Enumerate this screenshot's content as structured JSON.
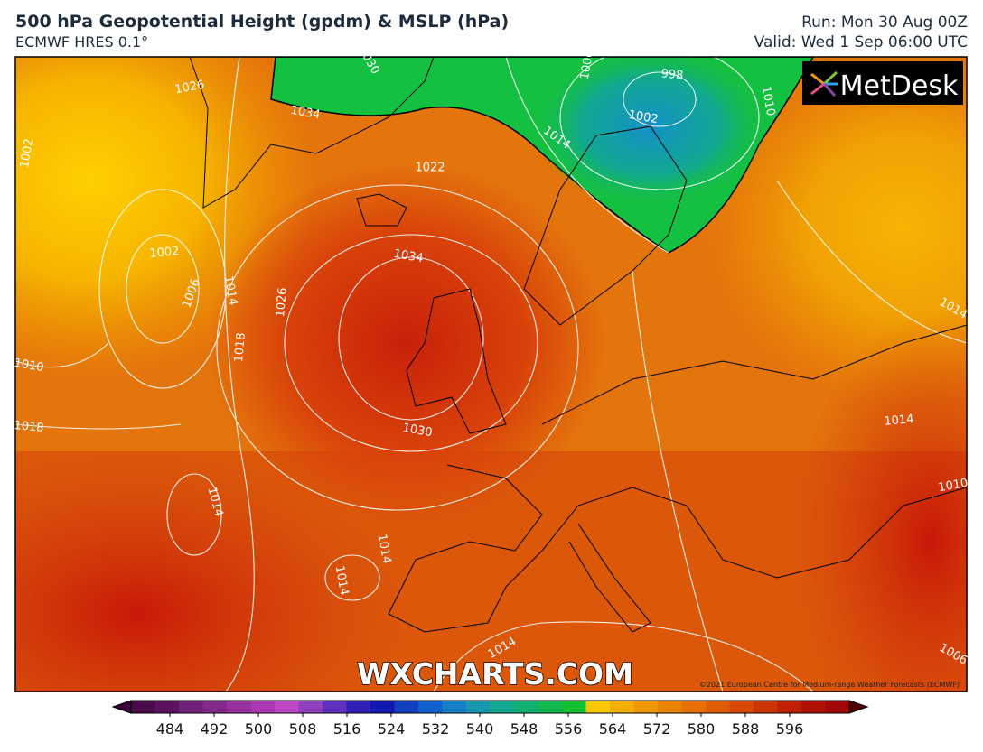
{
  "header": {
    "title": "500 hPa Geopotential Height (gpdm) & MSLP (hPa)",
    "subtitle": "ECMWF HRES 0.1°",
    "run": "Run: Mon 30 Aug 00Z",
    "valid": "Valid: Wed 1 Sep 06:00 UTC"
  },
  "logo": "MetDesk",
  "watermark": "WXCHARTS.COM",
  "copyright": "©2021 European Centre for Medium-range Weather Forecasts (ECMWF)",
  "contour_labels": [
    "1026",
    "1034",
    "1022",
    "1034",
    "1002",
    "1006",
    "1014",
    "1026",
    "1018",
    "1010",
    "1018",
    "1030",
    "1014",
    "1014",
    "1014",
    "1014",
    "998",
    "1002",
    "1014",
    "1010",
    "1014",
    "1010",
    "1014",
    "1006",
    "1030",
    "1002",
    "1006"
  ],
  "colorbar": {
    "ticks": [
      484,
      492,
      500,
      508,
      516,
      524,
      532,
      540,
      548,
      556,
      564,
      572,
      580,
      588,
      596
    ]
  }
}
